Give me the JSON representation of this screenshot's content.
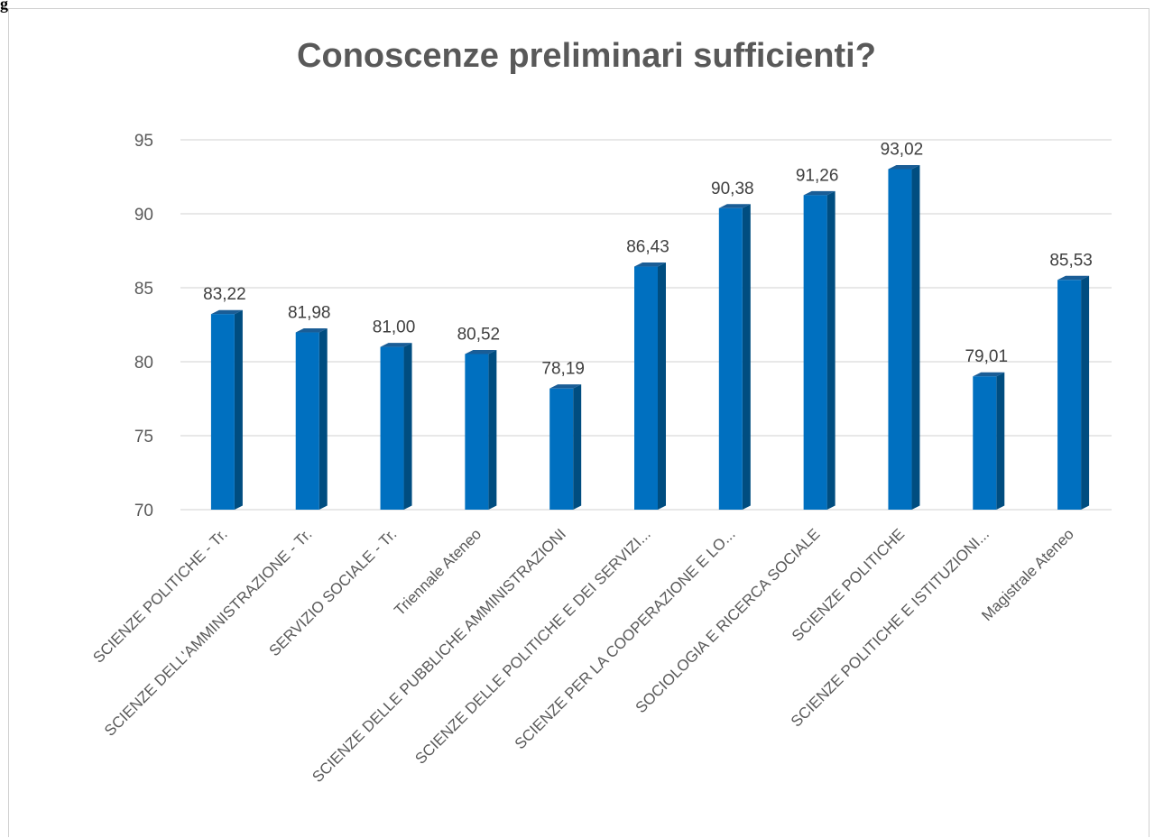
{
  "figure_label": "g",
  "chart_data": {
    "type": "bar",
    "title": "Conoscenze preliminari sufficienti?",
    "xlabel": "",
    "ylabel": "",
    "ylim": [
      70,
      95
    ],
    "yticks": [
      70,
      75,
      80,
      85,
      90,
      95
    ],
    "grid": true,
    "legend": "none",
    "bar_style": "3d",
    "categories": [
      "SCIENZE POLITICHE - Tr.",
      "SCIENZE DELL'AMMINISTRAZIONE - Tr.",
      "SERVIZIO SOCIALE - Tr.",
      "Triennale Ateneo",
      "SCIENZE DELLE PUBBLICHE AMMINISTRAZIONI",
      "SCIENZE DELLE POLITICHE E DEI SERVIZI...",
      "SCIENZE PER LA COOPERAZIONE E LO...",
      "SOCIOLOGIA E RICERCA SOCIALE",
      "SCIENZE POLITICHE",
      "SCIENZE POLITICHE E ISTITUZIONI...",
      "Magistrale Ateneo"
    ],
    "values": [
      83.22,
      81.98,
      81.0,
      80.52,
      78.19,
      86.43,
      90.38,
      91.26,
      93.02,
      79.01,
      85.53
    ],
    "value_labels": [
      "83,22",
      "81,98",
      "81,00",
      "80,52",
      "78,19",
      "86,43",
      "90,38",
      "91,26",
      "93,02",
      "79,01",
      "85,53"
    ],
    "colors": {
      "bar_front": "#0070c0",
      "bar_side": "#004d80",
      "bar_top": "#1a5d96",
      "grid": "#d9d9d9",
      "text": "#595959"
    }
  }
}
